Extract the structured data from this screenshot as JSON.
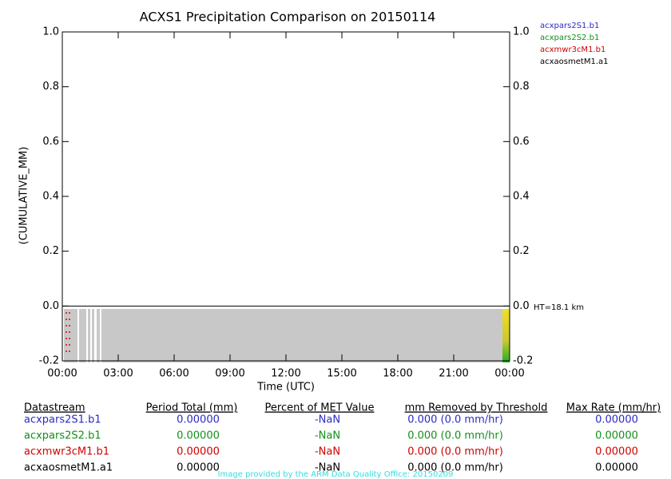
{
  "chart_data": {
    "type": "line",
    "title": "ACXS1 Precipitation Comparison on 20150114",
    "x_label": "Time (UTC)",
    "y_label": "(CUMULATIVE_MM)",
    "annotation": "HT=18.1 km",
    "xlim": [
      0,
      24
    ],
    "xticks": [
      {
        "value": 0,
        "label": "00:00"
      },
      {
        "value": 3,
        "label": "03:00"
      },
      {
        "value": 6,
        "label": "06:00"
      },
      {
        "value": 9,
        "label": "09:00"
      },
      {
        "value": 12,
        "label": "12:00"
      },
      {
        "value": 15,
        "label": "15:00"
      },
      {
        "value": 18,
        "label": "18:00"
      },
      {
        "value": 21,
        "label": "21:00"
      },
      {
        "value": 24,
        "label": "00:00"
      }
    ],
    "ylim": [
      -0.2,
      1
    ],
    "yticks": [
      {
        "value": -0.2,
        "label": "-0.2"
      },
      {
        "value": 0,
        "label": "0.0"
      },
      0.2,
      0.4,
      0.6,
      0.8,
      {
        "value": 1,
        "label": "1.0"
      }
    ],
    "y2lim": [
      -0.2,
      1
    ],
    "y2ticks": [
      {
        "value": -0.2,
        "label": "-0.2"
      },
      {
        "value": 0,
        "label": "0.0"
      },
      0.2,
      0.4,
      0.6,
      0.8,
      {
        "value": 1,
        "label": "1.0"
      }
    ],
    "series": [
      {
        "name": "acxpars2S1.b1",
        "color": "#2a2ac8"
      },
      {
        "name": "acxpars2S2.b1",
        "color": "#10901a"
      },
      {
        "name": "acxmwr3cM1.b1",
        "color": "#d00000"
      },
      {
        "name": "acxaosmetM1.a1",
        "color": "#000000"
      }
    ]
  },
  "table": {
    "header": [
      "Datastream",
      "Period Total (mm)",
      "Percent of MET Value",
      "mm Removed by Threshold",
      "Max Rate (mm/hr)"
    ],
    "rows": [
      [
        "acxpars2S1.b1",
        "0.00000",
        "-NaN",
        "0.000 (0.0 mm/hr)",
        "0.00000"
      ],
      [
        "acxpars2S2.b1",
        "0.00000",
        "-NaN",
        "0.000 (0.0 mm/hr)",
        "0.00000"
      ],
      [
        "acxmwr3cM1.b1",
        "0.00000",
        "-NaN",
        "0.000 (0.0 mm/hr)",
        "0.00000"
      ],
      [
        "acxaosmetM1.a1",
        "0.00000",
        "-NaN",
        "0.000 (0.0 mm/hr)",
        "0.00000"
      ]
    ]
  },
  "footer": "Image provided by the ARM Data Quality Office: 20150209"
}
